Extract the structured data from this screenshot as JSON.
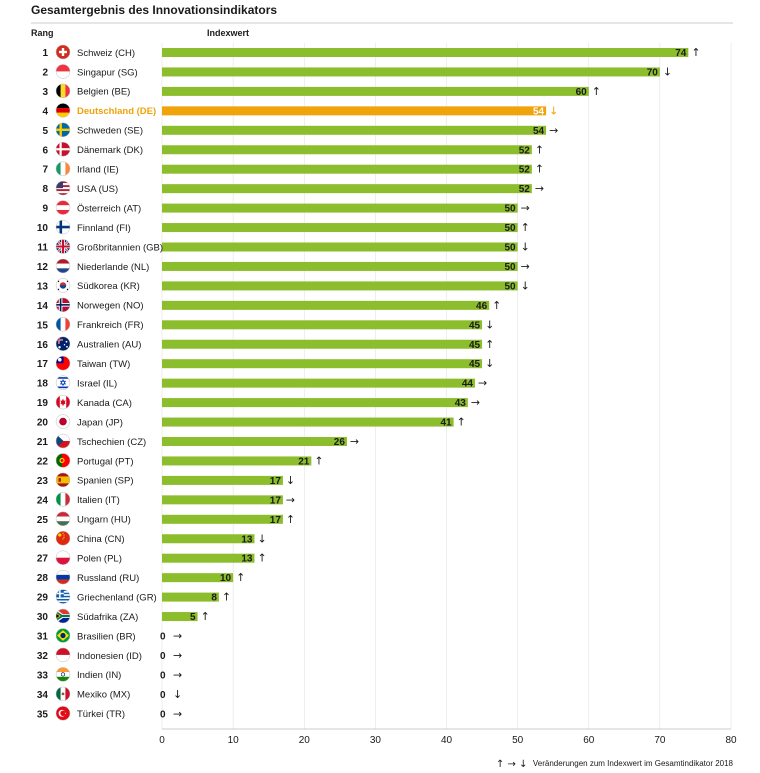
{
  "chart_data": {
    "type": "bar",
    "orientation": "horizontal",
    "title": "Gesamtergebnis des Innovationsindikators",
    "rank_header": "Rang",
    "value_header": "Indexwert",
    "xlim": [
      0,
      80
    ],
    "x_ticks": [
      0,
      10,
      20,
      30,
      40,
      50,
      60,
      70,
      80
    ],
    "bar_color": "#8cbd2c",
    "highlight_color": "#f0a30a",
    "legend_text": "Veränderungen zum Indexwert im Gesamtindikator 2018",
    "legend_arrows": [
      "↑",
      "→",
      "↓"
    ],
    "rows": [
      {
        "rank": "1",
        "country": "Schweiz (CH)",
        "value": 74,
        "trend": "↑",
        "flag": "flag-ch"
      },
      {
        "rank": "2",
        "country": "Singapur (SG)",
        "value": 70,
        "trend": "↓",
        "flag": "flag-sg"
      },
      {
        "rank": "3",
        "country": "Belgien (BE)",
        "value": 60,
        "trend": "↑",
        "flag": "flag-be"
      },
      {
        "rank": "4",
        "country": "Deutschland (DE)",
        "value": 54,
        "trend": "↓",
        "flag": "flag-de",
        "highlight": true
      },
      {
        "rank": "5",
        "country": "Schweden (SE)",
        "value": 54,
        "trend": "→",
        "flag": "flag-se"
      },
      {
        "rank": "6",
        "country": "Dänemark (DK)",
        "value": 52,
        "trend": "↑",
        "flag": "flag-dk"
      },
      {
        "rank": "7",
        "country": "Irland (IE)",
        "value": 52,
        "trend": "↑",
        "flag": "flag-ie"
      },
      {
        "rank": "8",
        "country": "USA (US)",
        "value": 52,
        "trend": "→",
        "flag": "flag-us"
      },
      {
        "rank": "9",
        "country": "Österreich (AT)",
        "value": 50,
        "trend": "→",
        "flag": "flag-at"
      },
      {
        "rank": "10",
        "country": "Finnland (FI)",
        "value": 50,
        "trend": "↑",
        "flag": "flag-fi"
      },
      {
        "rank": "11",
        "country": "Großbritannien (GB)",
        "value": 50,
        "trend": "↓",
        "flag": "flag-gb"
      },
      {
        "rank": "12",
        "country": "Niederlande (NL)",
        "value": 50,
        "trend": "→",
        "flag": "flag-nl"
      },
      {
        "rank": "13",
        "country": "Südkorea (KR)",
        "value": 50,
        "trend": "↓",
        "flag": "flag-kr"
      },
      {
        "rank": "14",
        "country": "Norwegen (NO)",
        "value": 46,
        "trend": "↑",
        "flag": "flag-no"
      },
      {
        "rank": "15",
        "country": "Frankreich (FR)",
        "value": 45,
        "trend": "↓",
        "flag": "flag-fr"
      },
      {
        "rank": "16",
        "country": "Australien (AU)",
        "value": 45,
        "trend": "↑",
        "flag": "flag-au"
      },
      {
        "rank": "17",
        "country": "Taiwan (TW)",
        "value": 45,
        "trend": "↓",
        "flag": "flag-tw"
      },
      {
        "rank": "18",
        "country": "Israel (IL)",
        "value": 44,
        "trend": "→",
        "flag": "flag-il"
      },
      {
        "rank": "19",
        "country": "Kanada (CA)",
        "value": 43,
        "trend": "→",
        "flag": "flag-ca"
      },
      {
        "rank": "20",
        "country": "Japan (JP)",
        "value": 41,
        "trend": "↑",
        "flag": "flag-jp"
      },
      {
        "rank": "21",
        "country": "Tschechien (CZ)",
        "value": 26,
        "trend": "→",
        "flag": "flag-cz"
      },
      {
        "rank": "22",
        "country": "Portugal (PT)",
        "value": 21,
        "trend": "↑",
        "flag": "flag-pt"
      },
      {
        "rank": "23",
        "country": "Spanien (SP)",
        "value": 17,
        "trend": "↓",
        "flag": "flag-es"
      },
      {
        "rank": "24",
        "country": "Italien (IT)",
        "value": 17,
        "trend": "→",
        "flag": "flag-it"
      },
      {
        "rank": "25",
        "country": "Ungarn (HU)",
        "value": 17,
        "trend": "↑",
        "flag": "flag-hu"
      },
      {
        "rank": "26",
        "country": "China (CN)",
        "value": 13,
        "trend": "↓",
        "flag": "flag-cn"
      },
      {
        "rank": "27",
        "country": "Polen (PL)",
        "value": 13,
        "trend": "↑",
        "flag": "flag-pl"
      },
      {
        "rank": "28",
        "country": "Russland (RU)",
        "value": 10,
        "trend": "↑",
        "flag": "flag-ru"
      },
      {
        "rank": "29",
        "country": "Griechenland (GR)",
        "value": 8,
        "trend": "↑",
        "flag": "flag-gr"
      },
      {
        "rank": "30",
        "country": "Südafrika (ZA)",
        "value": 5,
        "trend": "↑",
        "flag": "flag-za"
      },
      {
        "rank": "31",
        "country": "Brasilien (BR)",
        "value": 0,
        "trend": "→",
        "flag": "flag-br"
      },
      {
        "rank": "32",
        "country": "Indonesien (ID)",
        "value": 0,
        "trend": "→",
        "flag": "flag-id"
      },
      {
        "rank": "33",
        "country": "Indien (IN)",
        "value": 0,
        "trend": "→",
        "flag": "flag-in"
      },
      {
        "rank": "34",
        "country": "Mexiko (MX)",
        "value": 0,
        "trend": "↓",
        "flag": "flag-mx"
      },
      {
        "rank": "35",
        "country": "Türkei (TR)",
        "value": 0,
        "trend": "→",
        "flag": "flag-tr"
      }
    ]
  }
}
